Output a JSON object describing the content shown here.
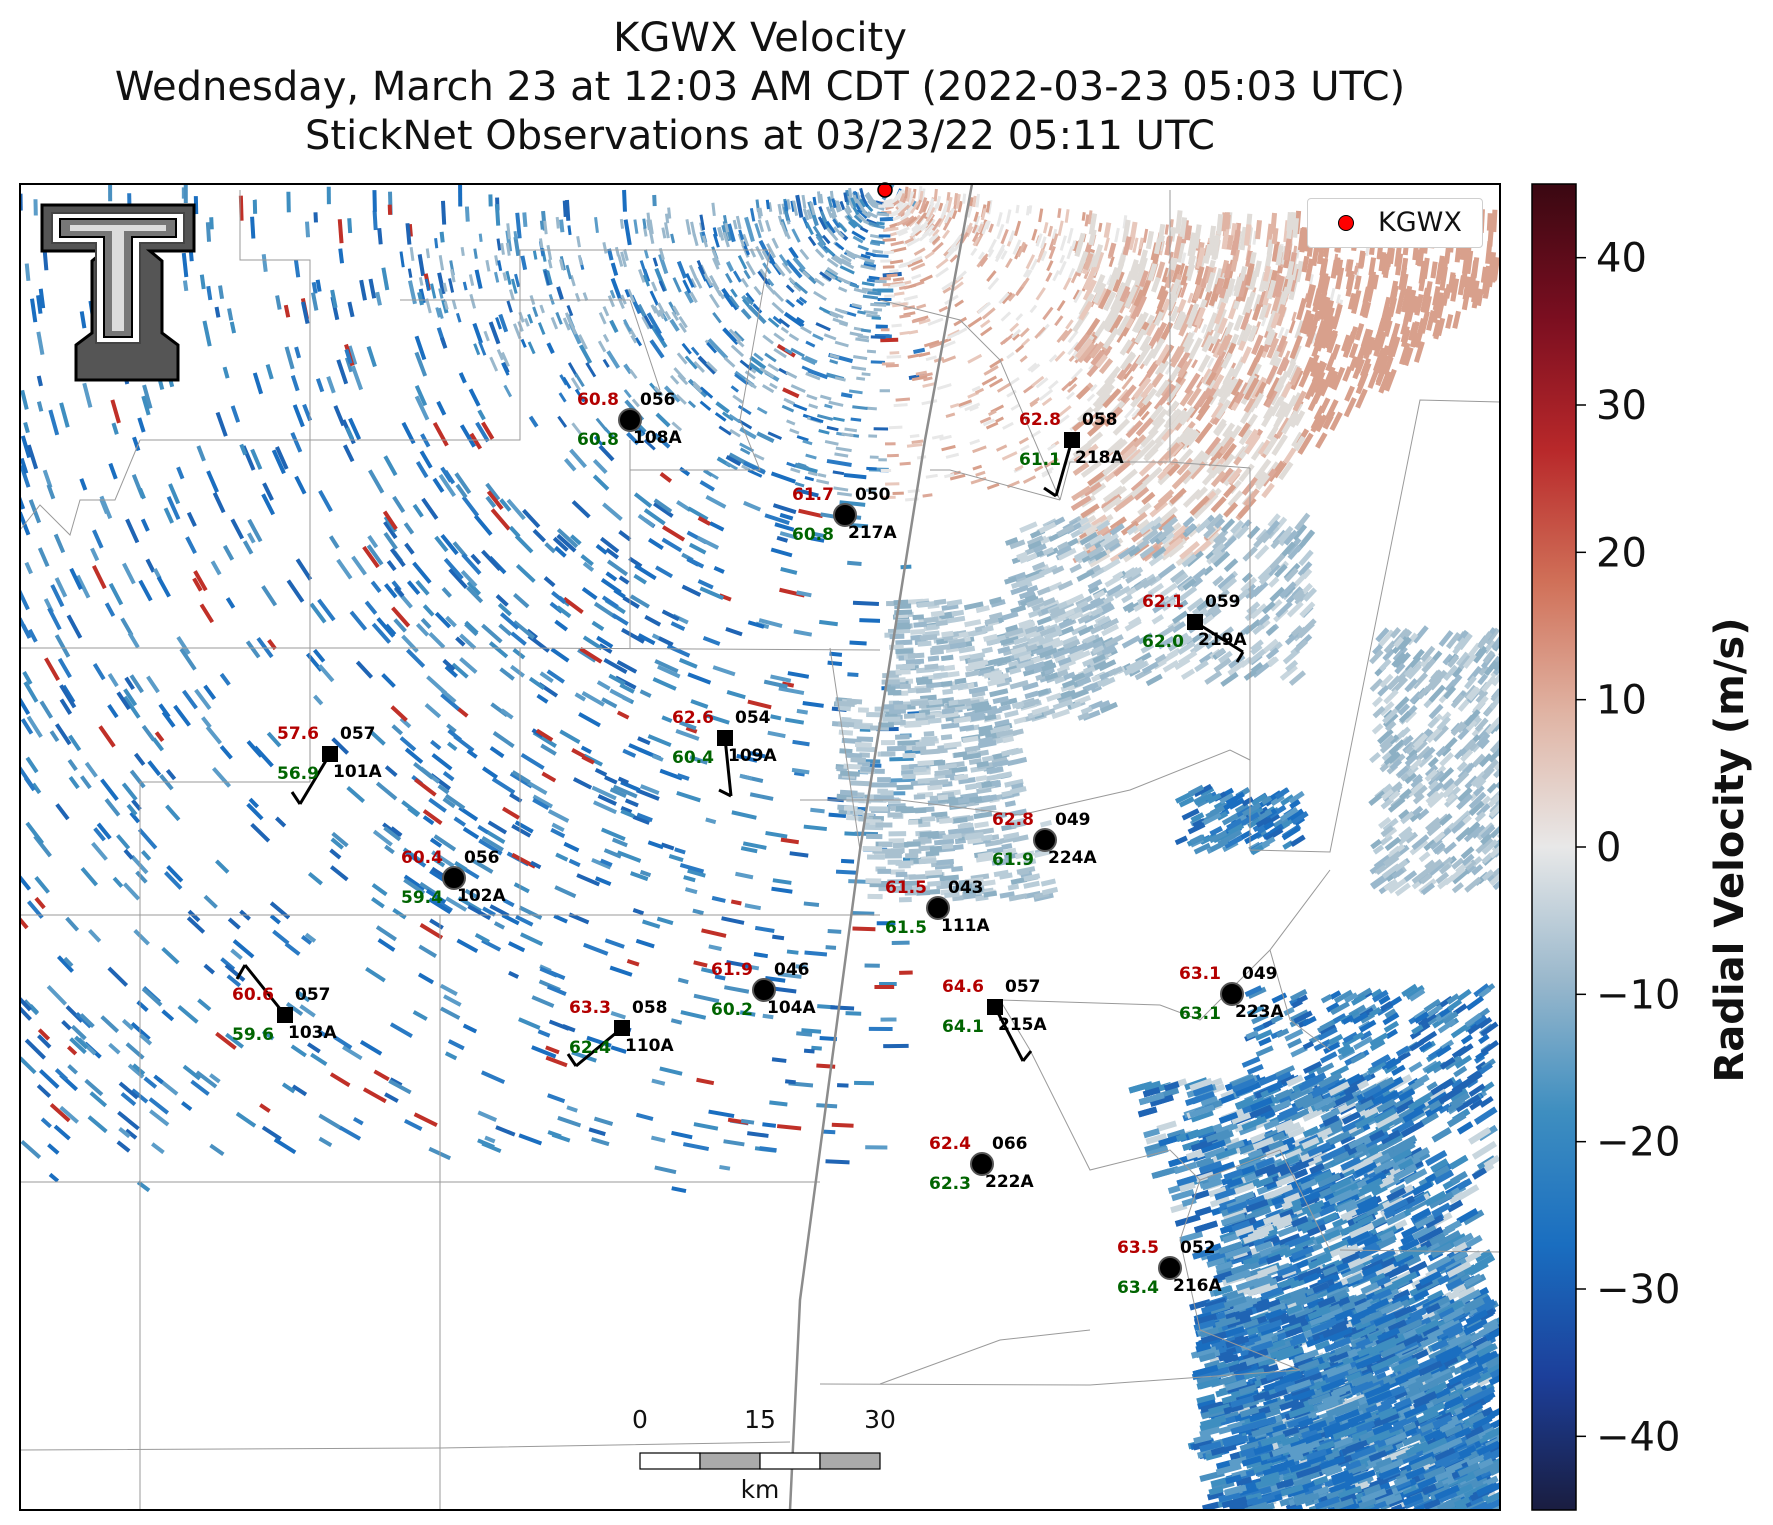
{
  "titles": {
    "line1": "KGWX Velocity",
    "line2": "Wednesday, March 23 at 12:03 AM CDT (2022-03-23 05:03 UTC)",
    "line3": "StickNet Observations at 03/23/22 05:11 UTC"
  },
  "legend": {
    "label": "KGWX",
    "marker_color": "#ff0000"
  },
  "colorbar": {
    "label": "Radial Velocity (m/s)",
    "range": [
      -45,
      45
    ],
    "ticks": [
      "40",
      "30",
      "20",
      "10",
      "0",
      "−10",
      "−20",
      "−30",
      "−40"
    ],
    "colors": [
      "#1a1d40",
      "#1c3f9a",
      "#1a6ec0",
      "#3e8ec0",
      "#9ab8cc",
      "#e8e8e8",
      "#e0b4a4",
      "#d07058",
      "#b8282a",
      "#7a0e20",
      "#3a0812"
    ]
  },
  "scalebar": {
    "ticks": [
      "0",
      "15",
      "30"
    ],
    "unit": "km"
  },
  "stations": [
    {
      "id": "108A",
      "temp": "60.8",
      "dew": "60.8",
      "dir": "056",
      "marker": "circle"
    },
    {
      "id": "217A",
      "temp": "61.7",
      "dew": "60.8",
      "dir": "050",
      "marker": "circle"
    },
    {
      "id": "218A",
      "temp": "62.8",
      "dew": "61.1",
      "dir": "058",
      "marker": "square"
    },
    {
      "id": "219A",
      "temp": "62.1",
      "dew": "62.0",
      "dir": "059",
      "marker": "square"
    },
    {
      "id": "109A",
      "temp": "62.6",
      "dew": "60.4",
      "dir": "054",
      "marker": "square"
    },
    {
      "id": "101A",
      "temp": "57.6",
      "dew": "56.9",
      "dir": "057",
      "marker": "square"
    },
    {
      "id": "224A",
      "temp": "62.8",
      "dew": "61.9",
      "dir": "049",
      "marker": "circle"
    },
    {
      "id": "102A",
      "temp": "60.4",
      "dew": "59.4",
      "dir": "056",
      "marker": "circle"
    },
    {
      "id": "111A",
      "temp": "61.5",
      "dew": "61.5",
      "dir": "043",
      "marker": "circle"
    },
    {
      "id": "104A",
      "temp": "61.9",
      "dew": "60.2",
      "dir": "046",
      "marker": "circle"
    },
    {
      "id": "103A",
      "temp": "60.6",
      "dew": "59.6",
      "dir": "057",
      "marker": "square"
    },
    {
      "id": "110A",
      "temp": "63.3",
      "dew": "62.4",
      "dir": "058",
      "marker": "square"
    },
    {
      "id": "215A",
      "temp": "64.6",
      "dew": "64.1",
      "dir": "057",
      "marker": "square"
    },
    {
      "id": "223A",
      "temp": "63.1",
      "dew": "63.1",
      "dir": "049",
      "marker": "circle"
    },
    {
      "id": "222A",
      "temp": "62.4",
      "dew": "62.3",
      "dir": "066",
      "marker": "circle"
    },
    {
      "id": "216A",
      "temp": "63.5",
      "dew": "63.4",
      "dir": "052",
      "marker": "circle"
    }
  ],
  "colors": {
    "temp": "#b30000",
    "dew": "#006400",
    "text": "#000000",
    "radar_site": "#ff0000"
  }
}
